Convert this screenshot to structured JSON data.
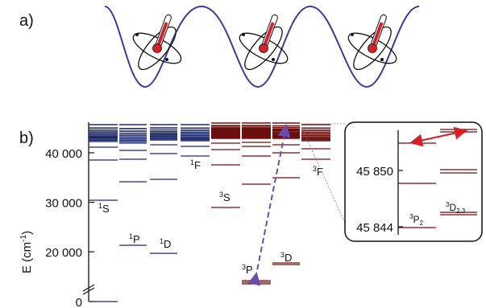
{
  "panels": {
    "a": "a)",
    "b": "b)"
  },
  "axis": {
    "ylabel": "E (cm",
    "ylabel_sup": "-1",
    "ylabel_end": ")",
    "ticks": [
      {
        "value": 0,
        "label": "0"
      },
      {
        "value": 20000,
        "label": "20 000"
      },
      {
        "value": 30000,
        "label": "30 000"
      },
      {
        "value": 40000,
        "label": "40 000"
      }
    ]
  },
  "terms": [
    {
      "sup": "1",
      "sub": "S"
    },
    {
      "sup": "1",
      "sub": "P"
    },
    {
      "sup": "1",
      "sub": "D"
    },
    {
      "sup": "1",
      "sub": "F"
    },
    {
      "sup": "3",
      "sub": "S"
    },
    {
      "sup": "3",
      "sub": "P"
    },
    {
      "sup": "3",
      "sub": "D"
    },
    {
      "sup": "3",
      "sub": "F"
    }
  ],
  "inset": {
    "ticks": [
      {
        "value": 45844,
        "label": "45 844"
      },
      {
        "value": 45850,
        "label": "45 850"
      }
    ],
    "labels": [
      {
        "sup": "3",
        "base": "P",
        "sub": "2"
      },
      {
        "sup": "3",
        "base": "D",
        "sub": "2,3"
      }
    ]
  },
  "colors": {
    "singlet": "#1f2a6b",
    "triplet": "#6b0f0f",
    "wave": "#3b3b9a",
    "transition": "#6a4bb0",
    "inset_arrow": "#d42027",
    "thermometer": "#d42027"
  },
  "icons": [
    "atom-thermometer-icon",
    "atom-thermometer-icon",
    "atom-thermometer-icon"
  ]
}
